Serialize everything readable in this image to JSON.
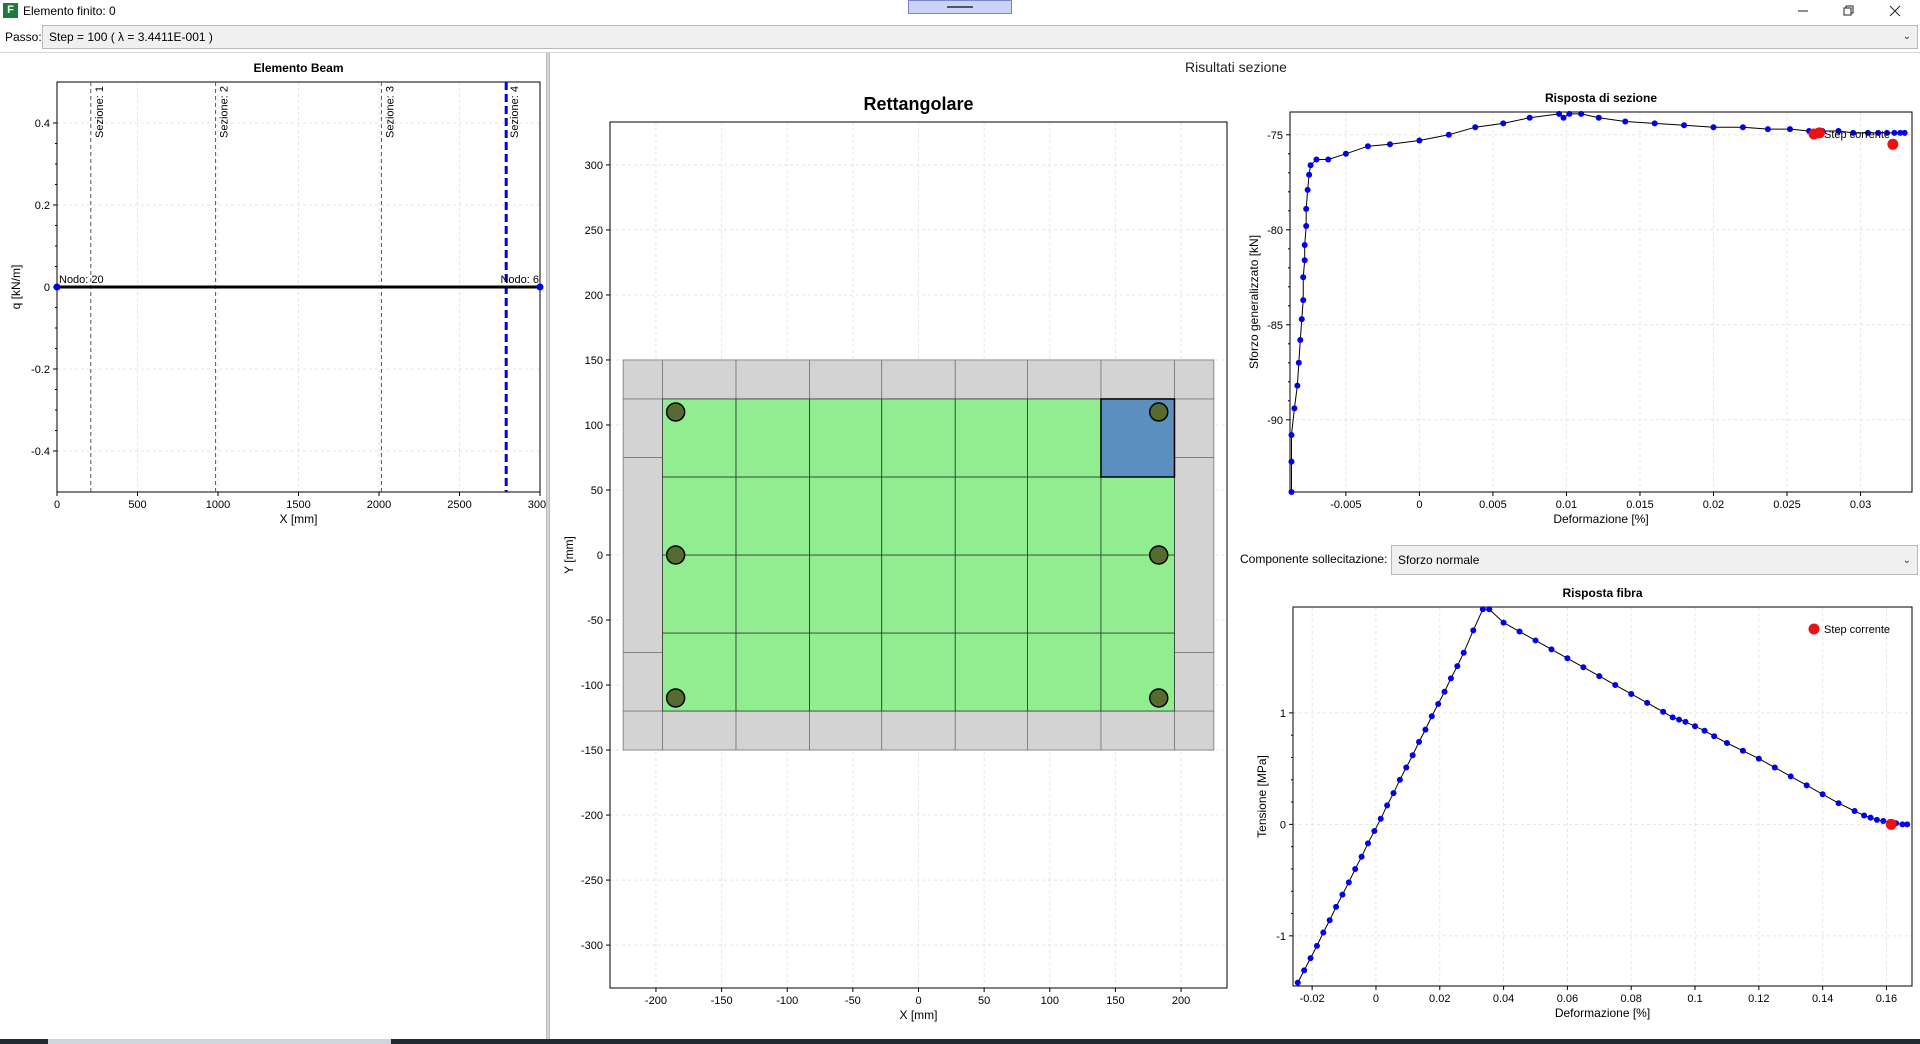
{
  "window": {
    "title": "Elemento finito: 0",
    "app_icon_letter": "F",
    "minimize_icon": "minimize-icon",
    "restore_icon": "restore-icon",
    "close_icon": "close-icon"
  },
  "step": {
    "label": "Passo:",
    "value": "Step = 100 ( λ = 3.4411E-001 )"
  },
  "results_title": "Risultati sezione",
  "component": {
    "label": "Componente sollecitazione:",
    "value": "Sforzo normale"
  },
  "colors": {
    "series": "#0000ee",
    "current_step": "#ee1111",
    "concrete_core": "#90ee90",
    "cover": "#d3d3d3",
    "selected_fiber": "#5b8fc0",
    "rebar": "#556b2f"
  },
  "chart_data": [
    {
      "id": "beam",
      "type": "line",
      "title": "Elemento Beam",
      "xlabel": "X [mm]",
      "ylabel": "q [kN/m]",
      "xlim": [
        0,
        3000
      ],
      "ylim": [
        -0.5,
        0.5
      ],
      "x_ticks": [
        0,
        500,
        1000,
        1500,
        2000,
        2500,
        3000
      ],
      "y_ticks": [
        -0.4,
        -0.2,
        0,
        0.2,
        0.4
      ],
      "y_tick_labels": [
        "-0.4",
        "-0.2",
        "0",
        "0.2",
        "0.4"
      ],
      "grid": true,
      "series": [
        {
          "x": [
            0,
            3000
          ],
          "y": [
            0,
            0
          ]
        }
      ],
      "nodes": [
        {
          "x": 0,
          "label": "Nodo: 20"
        },
        {
          "x": 3000,
          "label": "Nodo: 6"
        }
      ],
      "sections": [
        {
          "x": 210,
          "label": "Sezione: 1"
        },
        {
          "x": 985,
          "label": "Sezione: 2"
        },
        {
          "x": 2015,
          "label": "Sezione: 3"
        },
        {
          "x": 2790,
          "label": "Sezione: 4",
          "selected": true
        }
      ]
    },
    {
      "id": "section",
      "type": "heatmap",
      "title": "Rettangolare",
      "xlabel": "X [mm]",
      "ylabel": "Y [mm]",
      "xlim": [
        -235,
        235
      ],
      "ylim": [
        -333,
        333
      ],
      "x_ticks": [
        -200,
        -150,
        -100,
        -50,
        0,
        50,
        100,
        150,
        200
      ],
      "y_ticks": [
        -300,
        -250,
        -200,
        -150,
        -100,
        -50,
        0,
        50,
        100,
        150,
        200,
        250,
        300
      ],
      "grid": true,
      "outer": {
        "x": [
          -225,
          225
        ],
        "y": [
          -150,
          150
        ]
      },
      "cover_y_splits": [
        -75,
        75
      ],
      "core": {
        "x": [
          -195,
          195
        ],
        "y": [
          -120,
          120
        ]
      },
      "core_x_divisions": [
        -195,
        -139,
        -83,
        -28,
        28,
        83,
        139,
        195
      ],
      "core_y_divisions": [
        -120,
        -60,
        0,
        60,
        120
      ],
      "selected_fiber": {
        "x": [
          139,
          195
        ],
        "y": [
          60,
          120
        ]
      },
      "rebars": [
        {
          "x": -185,
          "y": 110
        },
        {
          "x": 183,
          "y": 110
        },
        {
          "x": -185,
          "y": 0
        },
        {
          "x": 183,
          "y": 0
        },
        {
          "x": -185,
          "y": -110
        },
        {
          "x": 183,
          "y": -110
        }
      ]
    },
    {
      "id": "section_response",
      "type": "line",
      "title": "Risposta di sezione",
      "xlabel": "Deformazione [%]",
      "ylabel": "Sforzo generalizzato [kN]",
      "xlim": [
        -0.0088,
        0.0335
      ],
      "ylim": [
        -93.8,
        -73.8
      ],
      "x_ticks": [
        -0.005,
        0,
        0.005,
        0.01,
        0.015,
        0.02,
        0.025,
        0.03
      ],
      "x_tick_labels": [
        "-0.005",
        "0",
        "0.005",
        "0.01",
        "0.015",
        "0.02",
        "0.025",
        "0.03"
      ],
      "y_ticks": [
        -90,
        -85,
        -80,
        -75
      ],
      "grid": true,
      "legend": {
        "label": "Step corrente",
        "placement": "top-right"
      },
      "series": [
        {
          "x": [
            -0.0087,
            -0.0087,
            -0.0087,
            -0.0085,
            -0.0083,
            -0.0082,
            -0.0081,
            -0.008,
            -0.0079,
            -0.0079,
            -0.0078,
            -0.0078,
            -0.0077,
            -0.0077,
            -0.0076,
            -0.0075,
            -0.0074,
            -0.007,
            -0.0062,
            -0.005,
            -0.0035,
            -0.002,
            0,
            0.002,
            0.0038,
            0.0057,
            0.0075,
            0.0095,
            0.0098,
            0.0102,
            0.011,
            0.0122,
            0.014,
            0.016,
            0.018,
            0.02,
            0.022,
            0.0237,
            0.0252,
            0.0265,
            0.0274,
            0.0285,
            0.0295,
            0.0305,
            0.0312,
            0.0318,
            0.0323,
            0.0327,
            0.033
          ],
          "y": [
            -93.8,
            -92.2,
            -90.8,
            -89.4,
            -88.2,
            -87.0,
            -85.8,
            -84.7,
            -83.7,
            -82.5,
            -81.6,
            -80.8,
            -79.8,
            -78.9,
            -77.9,
            -77.1,
            -76.6,
            -76.3,
            -76.3,
            -76.0,
            -75.6,
            -75.5,
            -75.3,
            -75.0,
            -74.6,
            -74.4,
            -74.1,
            -73.9,
            -74.1,
            -73.9,
            -73.9,
            -74.1,
            -74.3,
            -74.4,
            -74.5,
            -74.6,
            -74.6,
            -74.7,
            -74.7,
            -74.8,
            -74.8,
            -74.8,
            -74.9,
            -74.9,
            -74.9,
            -74.9,
            -74.9,
            -74.9,
            -74.9
          ]
        }
      ],
      "current_step": [
        {
          "x": 0.0272,
          "y": -74.9
        },
        {
          "x": 0.0322,
          "y": -75.5
        }
      ]
    },
    {
      "id": "fiber_response",
      "type": "line",
      "title": "Risposta fibra",
      "xlabel": "Deformazione [%]",
      "ylabel": "Tensione [MPa]",
      "xlim": [
        -0.026,
        0.168
      ],
      "ylim": [
        -1.45,
        1.95
      ],
      "x_ticks": [
        -0.02,
        0,
        0.02,
        0.04,
        0.06,
        0.08,
        0.1,
        0.12,
        0.14,
        0.16
      ],
      "x_tick_labels": [
        "-0.02",
        "0",
        "0.02",
        "0.04",
        "0.06",
        "0.08",
        "0.1",
        "0.12",
        "0.14",
        "0.16"
      ],
      "y_ticks": [
        -1,
        0,
        1
      ],
      "grid": true,
      "legend": {
        "label": "Step corrente",
        "placement": "top-right"
      },
      "series": [
        {
          "x": [
            -0.0245,
            -0.0225,
            -0.0205,
            -0.0185,
            -0.0165,
            -0.0145,
            -0.0125,
            -0.0105,
            -0.0085,
            -0.0065,
            -0.0045,
            -0.0025,
            -0.0005,
            0.0015,
            0.0035,
            0.0055,
            0.0075,
            0.0095,
            0.0115,
            0.0135,
            0.0155,
            0.0175,
            0.0195,
            0.0215,
            0.0235,
            0.0255,
            0.0275,
            0.0305,
            0.0335,
            0.0355,
            0.04,
            0.045,
            0.05,
            0.055,
            0.06,
            0.065,
            0.07,
            0.075,
            0.08,
            0.085,
            0.09,
            0.093,
            0.095,
            0.097,
            0.1,
            0.103,
            0.106,
            0.11,
            0.115,
            0.12,
            0.125,
            0.13,
            0.135,
            0.14,
            0.145,
            0.15,
            0.153,
            0.155,
            0.157,
            0.159,
            0.161,
            0.163,
            0.165,
            0.1665
          ],
          "y": [
            -1.42,
            -1.31,
            -1.2,
            -1.09,
            -0.97,
            -0.86,
            -0.74,
            -0.63,
            -0.52,
            -0.4,
            -0.29,
            -0.17,
            -0.06,
            0.05,
            0.17,
            0.28,
            0.4,
            0.51,
            0.62,
            0.74,
            0.85,
            0.97,
            1.08,
            1.19,
            1.31,
            1.42,
            1.54,
            1.74,
            1.93,
            1.93,
            1.81,
            1.73,
            1.65,
            1.57,
            1.49,
            1.41,
            1.33,
            1.25,
            1.17,
            1.09,
            1.01,
            0.96,
            0.94,
            0.92,
            0.88,
            0.84,
            0.79,
            0.73,
            0.66,
            0.59,
            0.51,
            0.43,
            0.35,
            0.27,
            0.19,
            0.12,
            0.08,
            0.06,
            0.04,
            0.03,
            0.02,
            0.01,
            0.0,
            0.0
          ]
        }
      ],
      "current_step": [
        {
          "x": 0.1615,
          "y": 0.0
        }
      ]
    }
  ]
}
